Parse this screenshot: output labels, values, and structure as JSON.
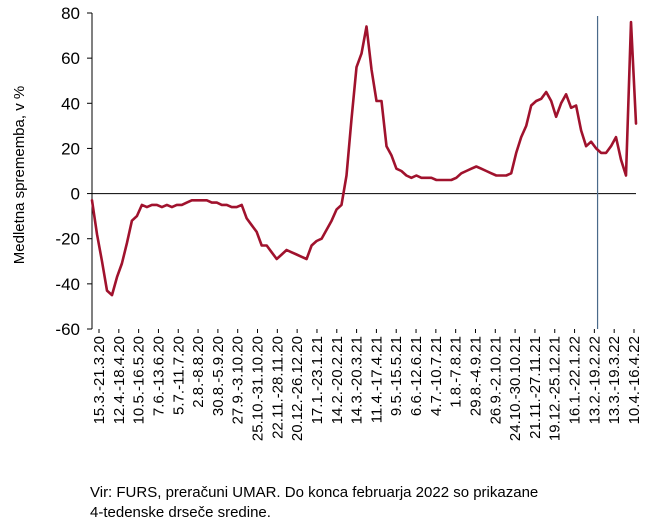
{
  "chart_data": {
    "type": "line",
    "ylabel": "Medletna sprememba, v %",
    "xlabel": "",
    "title": "",
    "ylim": [
      -60,
      80
    ],
    "yticks": [
      -60,
      -40,
      -20,
      0,
      20,
      40,
      60,
      80
    ],
    "grid": false,
    "legend": "none",
    "line_color": "#a0122d",
    "marker_line_color": "#4a6a8a",
    "marker_after_index": 101,
    "x_tick_labels": [
      "15.3.-21.3.20",
      "12.4.-18.4.20",
      "10.5.-16.5.20",
      "7.6.-13.6.20",
      "5.7.-11.7.20",
      "2.8.-8.8.20",
      "30.8.-5.9.20",
      "27.9.-3.10.20",
      "25.10.-31.10.20",
      "22.11.-28.11.20",
      "20.12.-26.12.20",
      "17.1.-23.1.21",
      "14.2.-20.2.21",
      "14.3.-20.3.21",
      "11.4.-17.4.21",
      "9.5.-15.5.21",
      "6.6.-12.6.21",
      "4.7.-10.7.21",
      "1.8.-7.8.21",
      "29.8.-4.9.21",
      "26.9.-2.10.21",
      "24.10.-30.10.21",
      "21.11.-27.11.21",
      "19.12.-25.12.21",
      "16.1.-22.1.22",
      "13.2.-19.2.22",
      "13.3.-19.3.22",
      "10.4.-16.4.22"
    ],
    "values": [
      -3,
      -18,
      -30,
      -43,
      -45,
      -37,
      -31,
      -22,
      -12,
      -10,
      -5,
      -6,
      -5,
      -5,
      -6,
      -5,
      -6,
      -5,
      -5,
      -4,
      -3,
      -3,
      -3,
      -3,
      -4,
      -4,
      -5,
      -5,
      -6,
      -6,
      -5,
      -11,
      -14,
      -17,
      -23,
      -23,
      -26,
      -29,
      -27,
      -25,
      -26,
      -27,
      -28,
      -29,
      -23,
      -21,
      -20,
      -16,
      -12,
      -7,
      -5,
      8,
      33,
      56,
      62,
      74,
      55,
      41,
      41,
      21,
      17,
      11,
      10,
      8,
      7,
      8,
      7,
      7,
      7,
      6,
      6,
      6,
      6,
      7,
      9,
      10,
      11,
      12,
      11,
      10,
      9,
      8,
      8,
      8,
      9,
      18,
      25,
      30,
      39,
      41,
      42,
      45,
      41,
      34,
      40,
      44,
      38,
      39,
      28,
      21,
      23,
      20,
      18,
      18,
      21,
      25,
      15,
      8,
      76,
      31
    ]
  },
  "footnote": {
    "line1": "Vir: FURS, preračuni UMAR. Do konca februarja 2022 so prikazane",
    "line2": "4-tedenske drseče sredine."
  }
}
